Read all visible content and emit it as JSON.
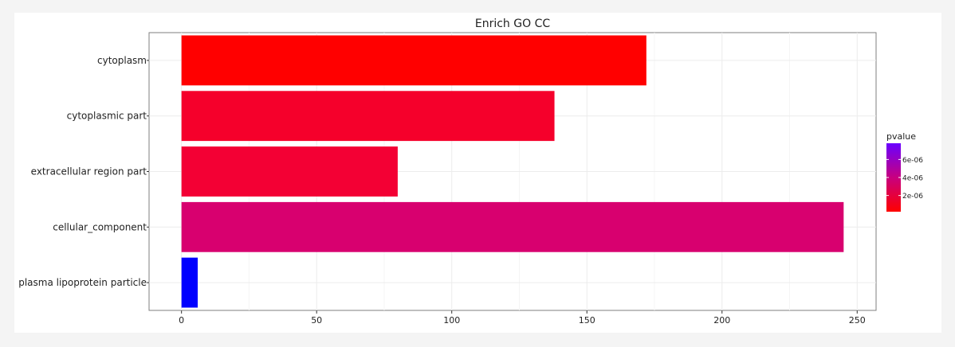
{
  "chart_data": {
    "type": "bar",
    "orientation": "horizontal",
    "title": "Enrich GO CC",
    "xlabel": "",
    "ylabel": "",
    "categories": [
      "cytoplasm",
      "cytoplasmic part",
      "extracellular region part",
      "cellular_component",
      "plasma lipoprotein particle"
    ],
    "values": [
      172,
      138,
      80,
      245,
      6
    ],
    "pvalues": [
      2e-07,
      1.2e-06,
      1.6e-06,
      4.2e-06,
      7.8e-06
    ],
    "colors": [
      "#ff0000",
      "#f5002b",
      "#f30034",
      "#d8006f",
      "#0000ff"
    ],
    "xlim": [
      -12,
      257
    ],
    "xticks": [
      0,
      50,
      100,
      150,
      200,
      250
    ],
    "grid": true,
    "legend": {
      "title": "pvalue",
      "position": "right",
      "ticks": [
        {
          "label": "6e-06",
          "value": 6e-06
        },
        {
          "label": "4e-06",
          "value": 4e-06
        },
        {
          "label": "2e-06",
          "value": 2e-06
        }
      ],
      "range": [
        2e-07,
        7.8e-06
      ],
      "low_color": "#ff0000",
      "high_color": "#6a00ff"
    }
  }
}
